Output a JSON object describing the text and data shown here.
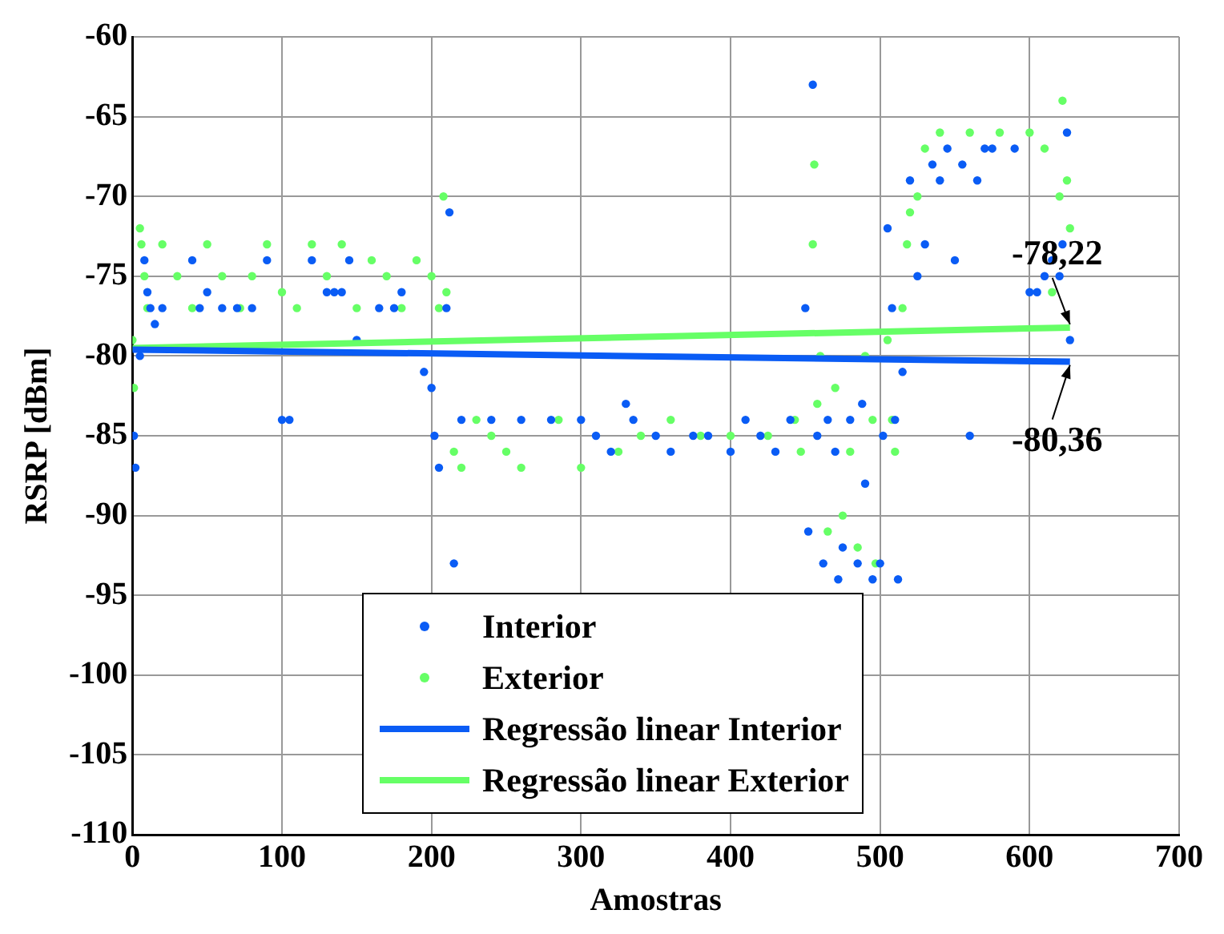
{
  "chart_data": {
    "type": "scatter",
    "xlabel": "Amostras",
    "ylabel": "RSRP [dBm]",
    "xlim": [
      0,
      700
    ],
    "xticks": [
      0,
      100,
      200,
      300,
      400,
      500,
      600,
      700
    ],
    "ylim": [
      -110,
      -60
    ],
    "yticks": [
      -110,
      -105,
      -100,
      -95,
      -90,
      -85,
      -80,
      -75,
      -70,
      -65,
      -60
    ],
    "grid": true,
    "legend": "bottom",
    "series": [
      {
        "name": "Interior",
        "color": "#0a5cf5",
        "marker": "circle",
        "x": [
          1,
          2,
          5,
          8,
          10,
          12,
          15,
          20,
          40,
          45,
          50,
          60,
          70,
          80,
          90,
          100,
          105,
          120,
          130,
          135,
          140,
          145,
          150,
          165,
          175,
          180,
          195,
          200,
          202,
          205,
          210,
          212,
          215,
          220,
          240,
          260,
          280,
          300,
          310,
          320,
          330,
          335,
          350,
          360,
          375,
          385,
          400,
          410,
          420,
          430,
          440,
          450,
          452,
          455,
          458,
          462,
          465,
          470,
          472,
          475,
          480,
          485,
          488,
          490,
          495,
          500,
          502,
          505,
          508,
          510,
          512,
          515,
          520,
          525,
          530,
          535,
          540,
          545,
          550,
          555,
          560,
          565,
          570,
          575,
          590,
          600,
          605,
          610,
          615,
          620,
          622,
          625,
          627
        ],
        "values": [
          -85,
          -87,
          -80,
          -74,
          -76,
          -77,
          -78,
          -77,
          -74,
          -77,
          -76,
          -77,
          -77,
          -77,
          -74,
          -84,
          -84,
          -74,
          -76,
          -76,
          -76,
          -74,
          -79,
          -77,
          -77,
          -76,
          -81,
          -82,
          -85,
          -87,
          -77,
          -71,
          -93,
          -84,
          -84,
          -84,
          -84,
          -84,
          -85,
          -86,
          -83,
          -84,
          -85,
          -86,
          -85,
          -85,
          -86,
          -84,
          -85,
          -86,
          -84,
          -77,
          -91,
          -63,
          -85,
          -93,
          -84,
          -86,
          -94,
          -92,
          -84,
          -93,
          -83,
          -88,
          -94,
          -93,
          -85,
          -72,
          -77,
          -84,
          -94,
          -81,
          -69,
          -75,
          -73,
          -68,
          -69,
          -67,
          -74,
          -68,
          -85,
          -69,
          -67,
          -67,
          -67,
          -76,
          -76,
          -75,
          -74,
          -75,
          -73,
          -66,
          -79
        ]
      },
      {
        "name": "Exterior",
        "color": "#66ff66",
        "marker": "circle",
        "x": [
          0,
          1,
          5,
          6,
          8,
          10,
          20,
          30,
          40,
          50,
          60,
          72,
          80,
          90,
          100,
          110,
          120,
          130,
          140,
          150,
          160,
          170,
          180,
          190,
          200,
          205,
          208,
          210,
          215,
          220,
          230,
          240,
          250,
          260,
          285,
          300,
          325,
          340,
          360,
          380,
          400,
          425,
          443,
          447,
          455,
          456,
          458,
          460,
          465,
          470,
          475,
          480,
          485,
          490,
          495,
          497,
          505,
          508,
          510,
          515,
          518,
          520,
          525,
          530,
          540,
          560,
          580,
          600,
          610,
          615,
          620,
          622,
          625,
          627
        ],
        "values": [
          -79,
          -82,
          -72,
          -73,
          -75,
          -77,
          -73,
          -75,
          -77,
          -73,
          -75,
          -77,
          -75,
          -73,
          -76,
          -77,
          -73,
          -75,
          -73,
          -77,
          -74,
          -75,
          -77,
          -74,
          -75,
          -77,
          -70,
          -76,
          -86,
          -87,
          -84,
          -85,
          -86,
          -87,
          -84,
          -87,
          -86,
          -85,
          -84,
          -85,
          -85,
          -85,
          -84,
          -86,
          -73,
          -68,
          -83,
          -80,
          -91,
          -82,
          -90,
          -86,
          -92,
          -80,
          -84,
          -93,
          -79,
          -84,
          -86,
          -77,
          -73,
          -71,
          -70,
          -67,
          -66,
          -66,
          -66,
          -66,
          -67,
          -76,
          -70,
          -64,
          -69,
          -72
        ]
      },
      {
        "name": "Regressão linear Interior",
        "type": "line",
        "marker": "none",
        "color": "#0a5cf5",
        "x": [
          0,
          627
        ],
        "values": [
          -79.6,
          -80.36
        ]
      },
      {
        "name": "Regressão linear Exterior",
        "type": "line",
        "marker": "none",
        "color": "#66ff66",
        "x": [
          0,
          627
        ],
        "values": [
          -79.5,
          -78.22
        ]
      }
    ],
    "annotations": [
      {
        "text": "-78,22",
        "x": 627,
        "y": -78.22
      },
      {
        "text": "-80,36",
        "x": 627,
        "y": -80.36
      }
    ]
  }
}
